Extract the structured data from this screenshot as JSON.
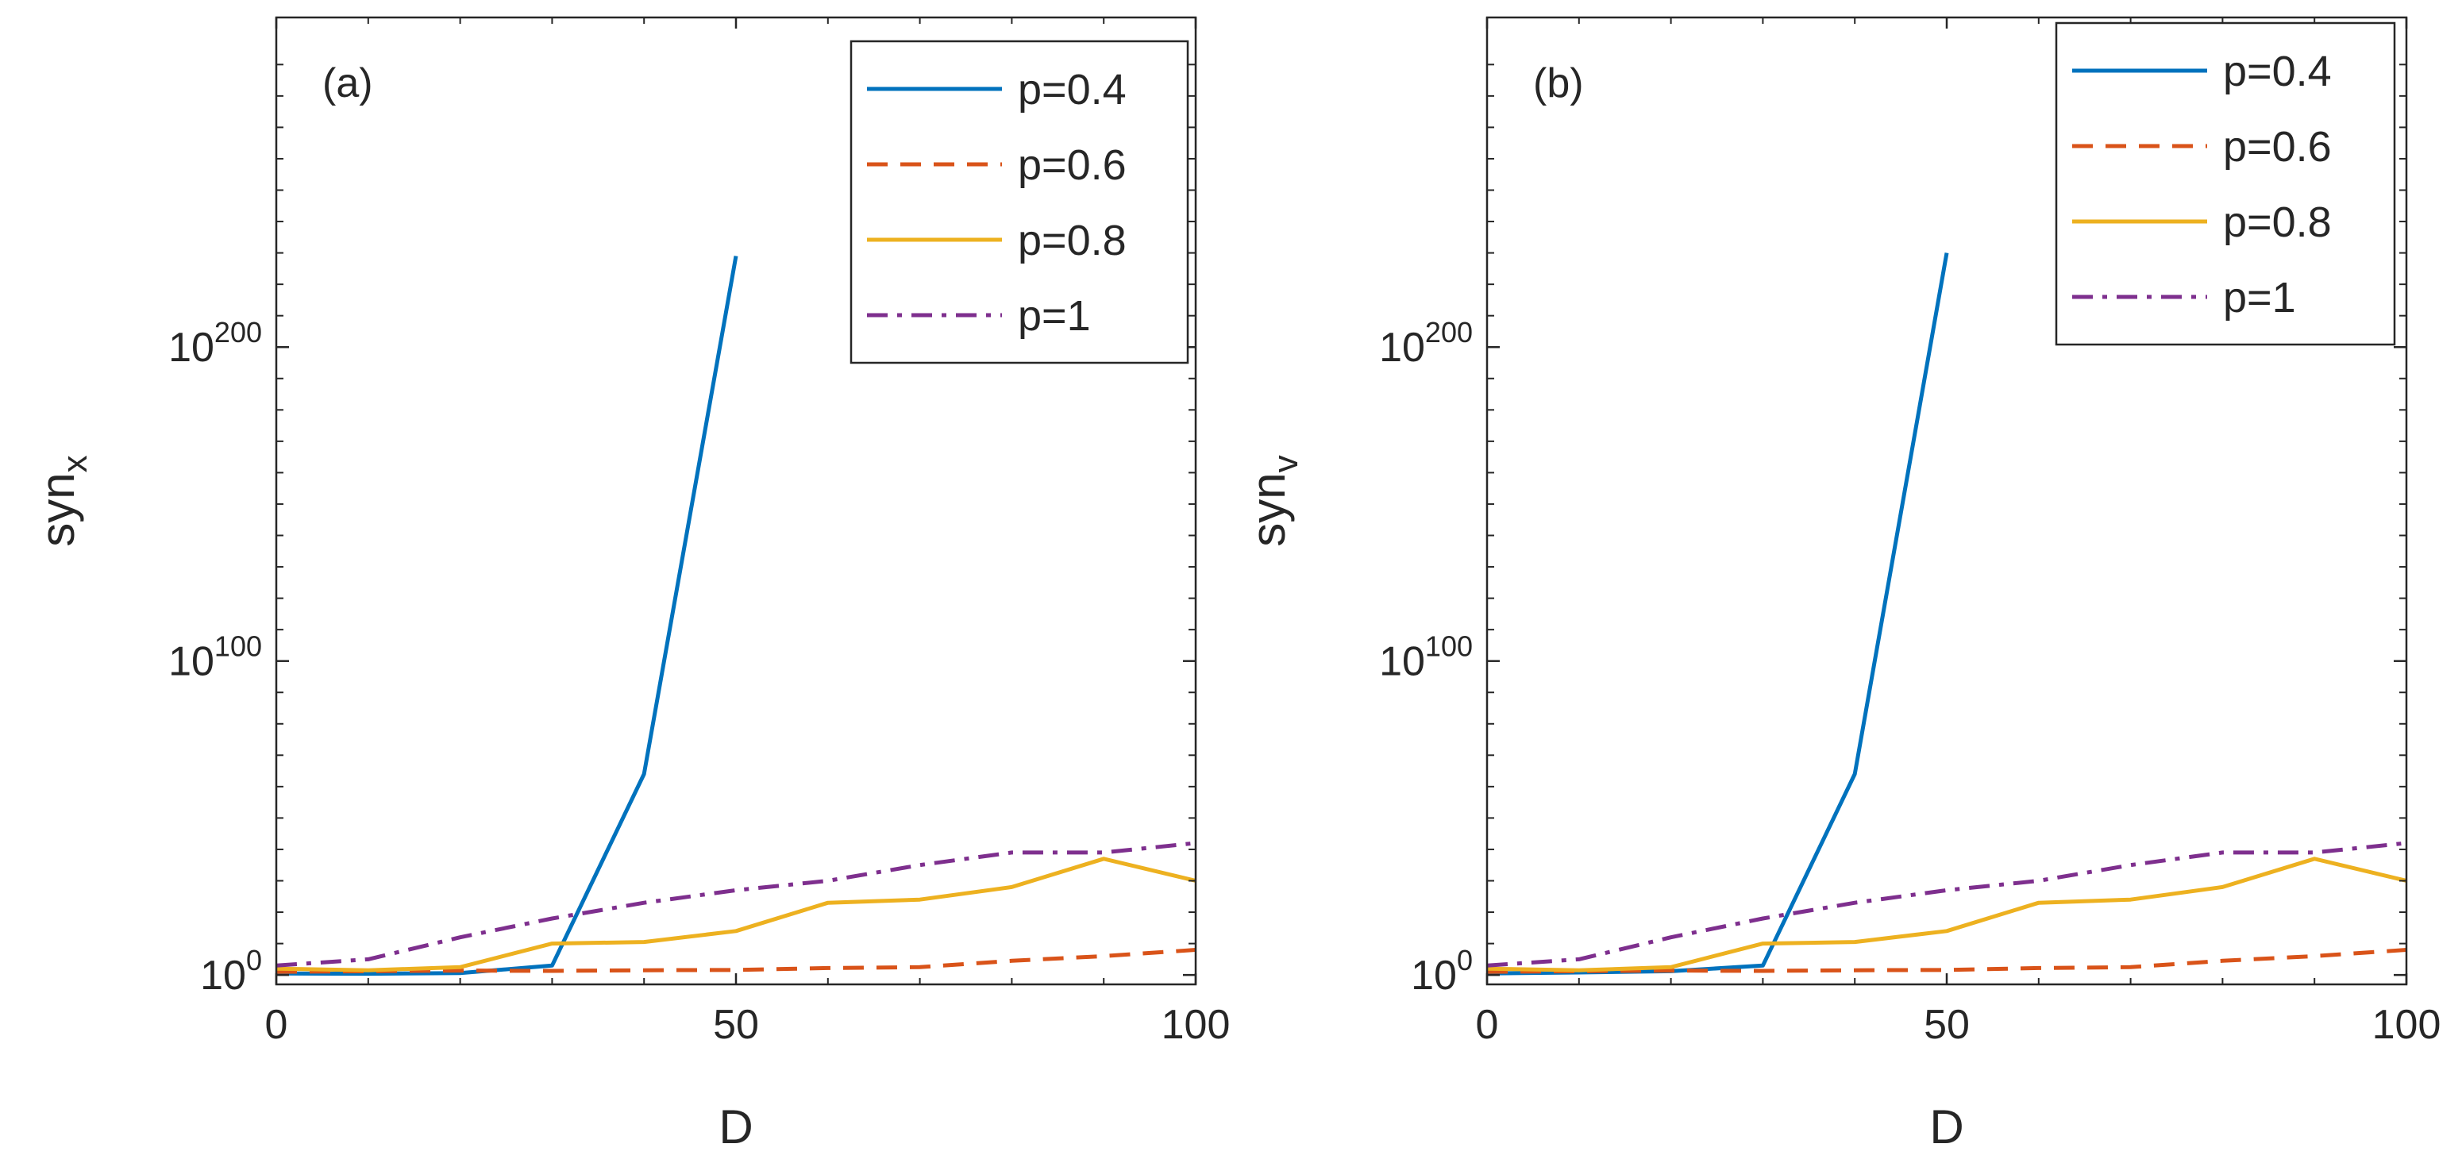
{
  "figure": {
    "panels": [
      "(a)",
      "(b)"
    ]
  },
  "colors": {
    "p04": "#0072BD",
    "p06": "#D95319",
    "p08": "#EDB120",
    "p1": "#7E2F8E",
    "axis": "#262626"
  },
  "chart_data": [
    {
      "type": "line",
      "panel_label": "(a)",
      "xlabel": "D",
      "ylabel_main": "syn",
      "ylabel_sub": "x",
      "yscale": "log",
      "xlim": [
        0,
        100
      ],
      "ylim_log10": [
        -3,
        305
      ],
      "x_ticks": [
        0,
        50,
        100
      ],
      "y_ticks": [
        {
          "base": "10",
          "exp": "0",
          "log10": 0
        },
        {
          "base": "10",
          "exp": "100",
          "log10": 100
        },
        {
          "base": "10",
          "exp": "200",
          "log10": 200
        }
      ],
      "grid": false,
      "legend_position": "top-right",
      "series": [
        {
          "name": "p=0.4",
          "color": "#0072BD",
          "dash": "solid",
          "x": [
            0,
            10,
            20,
            30,
            40,
            50
          ],
          "log10_y": [
            0.5,
            0.4,
            0.6,
            3,
            64,
            229
          ]
        },
        {
          "name": "p=0.6",
          "color": "#D95319",
          "dash": "dashed",
          "x": [
            0,
            10,
            20,
            30,
            40,
            50,
            60,
            70,
            80,
            90,
            100
          ],
          "log10_y": [
            1,
            1.2,
            1.4,
            1.3,
            1.5,
            1.6,
            2.2,
            2.5,
            4.5,
            6,
            8
          ]
        },
        {
          "name": "p=0.8",
          "color": "#EDB120",
          "dash": "solid",
          "x": [
            0,
            10,
            20,
            30,
            40,
            50,
            60,
            70,
            80,
            90,
            100
          ],
          "log10_y": [
            2,
            1.5,
            2.5,
            10,
            10.5,
            14,
            23,
            24,
            28,
            37,
            30
          ]
        },
        {
          "name": "p=1",
          "color": "#7E2F8E",
          "dash": "dashdot",
          "x": [
            0,
            10,
            20,
            30,
            40,
            50,
            60,
            70,
            80,
            90,
            100
          ],
          "log10_y": [
            3,
            5,
            12,
            18,
            23,
            27,
            30,
            35,
            39,
            39,
            42
          ]
        }
      ]
    },
    {
      "type": "line",
      "panel_label": "(b)",
      "xlabel": "D",
      "ylabel_main": "syn",
      "ylabel_sub": "v",
      "yscale": "log",
      "xlim": [
        0,
        100
      ],
      "ylim_log10": [
        -3,
        305
      ],
      "x_ticks": [
        0,
        50,
        100
      ],
      "y_ticks": [
        {
          "base": "10",
          "exp": "0",
          "log10": 0
        },
        {
          "base": "10",
          "exp": "100",
          "log10": 100
        },
        {
          "base": "10",
          "exp": "200",
          "log10": 200
        }
      ],
      "grid": false,
      "legend_position": "top-right",
      "series": [
        {
          "name": "p=0.4",
          "color": "#0072BD",
          "dash": "solid",
          "x": [
            0,
            10,
            20,
            30,
            40,
            50
          ],
          "log10_y": [
            0.5,
            0.8,
            1.2,
            3,
            64,
            230
          ]
        },
        {
          "name": "p=0.6",
          "color": "#D95319",
          "dash": "dashed",
          "x": [
            0,
            10,
            20,
            30,
            40,
            50,
            60,
            70,
            80,
            90,
            100
          ],
          "log10_y": [
            1,
            1.2,
            1.4,
            1.3,
            1.5,
            1.6,
            2.2,
            2.5,
            4.5,
            6,
            8
          ]
        },
        {
          "name": "p=0.8",
          "color": "#EDB120",
          "dash": "solid",
          "x": [
            0,
            10,
            20,
            30,
            40,
            50,
            60,
            70,
            80,
            90,
            100
          ],
          "log10_y": [
            2,
            1.5,
            2.5,
            10,
            10.5,
            14,
            23,
            24,
            28,
            37,
            30
          ]
        },
        {
          "name": "p=1",
          "color": "#7E2F8E",
          "dash": "dashdot",
          "x": [
            0,
            10,
            20,
            30,
            40,
            50,
            60,
            70,
            80,
            90,
            100
          ],
          "log10_y": [
            3,
            5,
            12,
            18,
            23,
            27,
            30,
            35,
            39,
            39,
            42
          ]
        }
      ]
    }
  ]
}
